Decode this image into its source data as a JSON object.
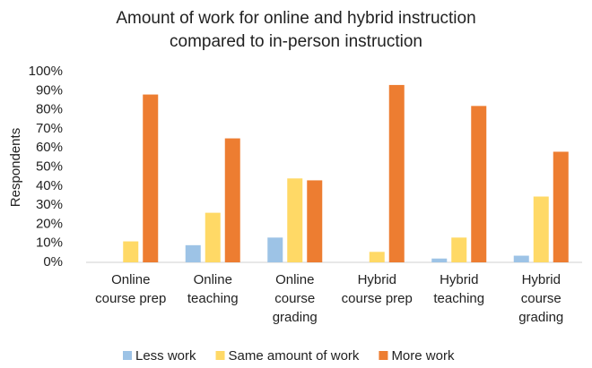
{
  "chart_data": {
    "type": "bar",
    "title": "Amount of work for online and hybrid instruction\ncompared to in-person instruction",
    "ylabel": "Respondents",
    "categories": [
      "Online\ncourse prep",
      "Online\nteaching",
      "Online\ncourse\ngrading",
      "Hybrid\ncourse prep",
      "Hybrid\nteaching",
      "Hybrid\ncourse\ngrading"
    ],
    "series": [
      {
        "name": "Less work",
        "color": "#9dc3e6",
        "values": [
          0,
          9,
          13,
          0,
          2,
          3.5
        ]
      },
      {
        "name": "Same amount of work",
        "color": "#ffd966",
        "values": [
          11,
          26,
          44,
          5.5,
          13,
          34.5
        ]
      },
      {
        "name": "More work",
        "color": "#ed7d31",
        "values": [
          88,
          65,
          43,
          93,
          82,
          58
        ]
      }
    ],
    "ylim": [
      0,
      100
    ],
    "yticks": [
      {
        "value": 0,
        "label": "0%"
      },
      {
        "value": 10,
        "label": "10%"
      },
      {
        "value": 20,
        "label": "20%"
      },
      {
        "value": 30,
        "label": "30%"
      },
      {
        "value": 40,
        "label": "40%"
      },
      {
        "value": 50,
        "label": "50%"
      },
      {
        "value": 60,
        "label": "60%"
      },
      {
        "value": 70,
        "label": "70%"
      },
      {
        "value": 80,
        "label": "80%"
      },
      {
        "value": 90,
        "label": "90%"
      },
      {
        "value": 100,
        "label": "100%"
      }
    ],
    "grid": false,
    "legend": "bottom"
  }
}
